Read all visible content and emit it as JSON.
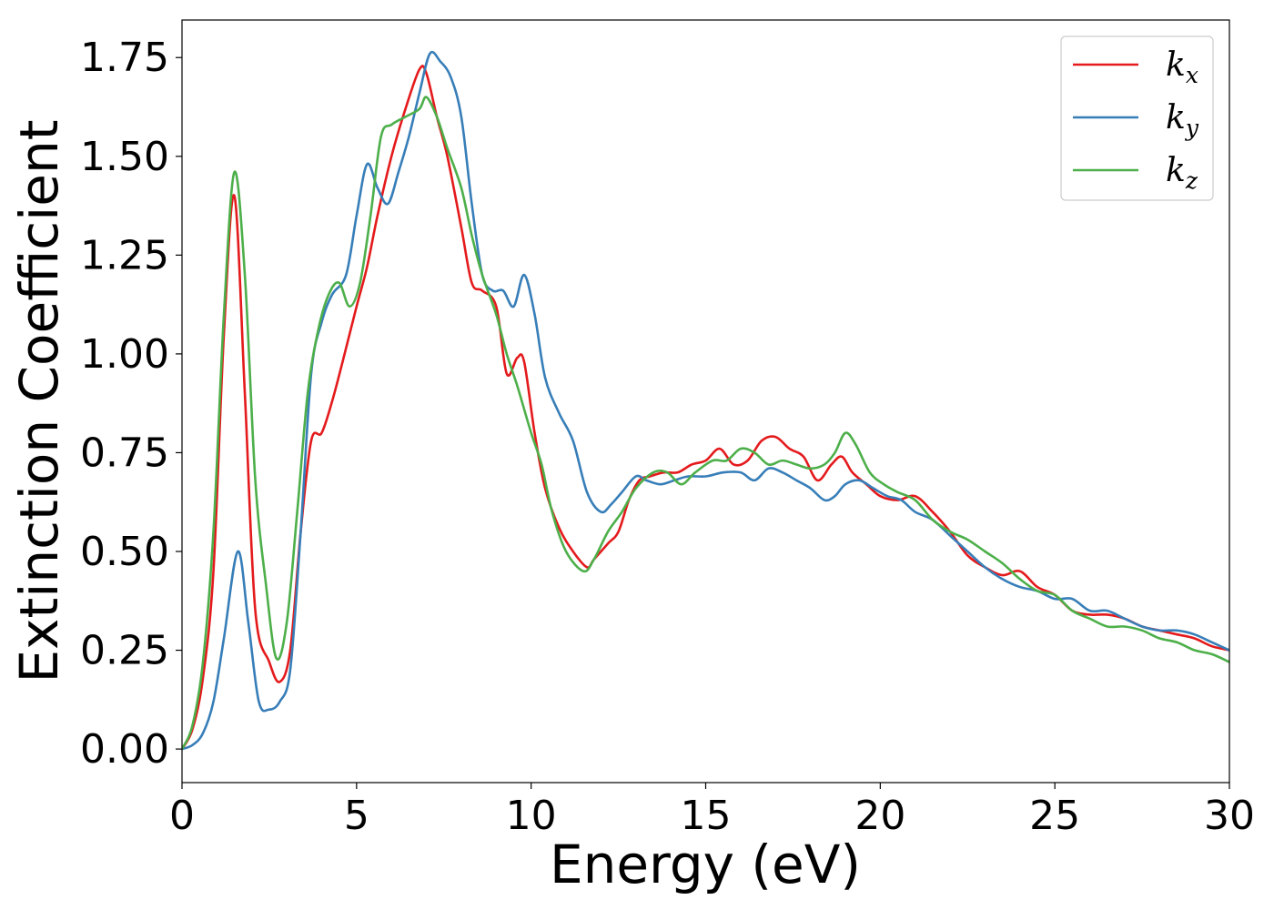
{
  "chart_data": {
    "type": "line",
    "xlabel": "Energy (eV)",
    "ylabel": "Extinction Coefficient",
    "xlim": [
      0,
      30
    ],
    "ylim": [
      -0.085,
      1.845
    ],
    "xticks": [
      0,
      5,
      10,
      15,
      20,
      25,
      30
    ],
    "xtick_labels": [
      "0",
      "5",
      "10",
      "15",
      "20",
      "25",
      "30"
    ],
    "yticks": [
      0,
      0.25,
      0.5,
      0.75,
      1.0,
      1.25,
      1.5,
      1.75
    ],
    "ytick_labels": [
      "0.00",
      "0.25",
      "0.50",
      "0.75",
      "1.00",
      "1.25",
      "1.50",
      "1.75"
    ],
    "grid": false,
    "legend_position": "top-right",
    "series": [
      {
        "name": "k_x",
        "label_main": "k",
        "label_sub": "x",
        "color": "#e41a1c",
        "x": [
          0,
          0.3,
          0.6,
          0.9,
          1.2,
          1.5,
          1.8,
          2.1,
          2.5,
          2.8,
          3.1,
          3.4,
          3.7,
          4.0,
          4.3,
          4.6,
          5.0,
          5.3,
          5.6,
          6.0,
          6.4,
          6.8,
          7.0,
          7.3,
          7.6,
          8.0,
          8.3,
          8.6,
          9.0,
          9.3,
          9.6,
          9.8,
          10.1,
          10.4,
          10.8,
          11.2,
          11.6,
          11.8,
          12.2,
          12.5,
          12.8,
          13.1,
          13.4,
          13.8,
          14.2,
          14.6,
          15.0,
          15.4,
          15.8,
          16.2,
          16.6,
          17.0,
          17.4,
          17.8,
          18.2,
          18.6,
          18.9,
          19.2,
          19.6,
          20.0,
          20.5,
          21.0,
          21.5,
          22.0,
          22.5,
          23.0,
          23.5,
          24.0,
          24.5,
          25.0,
          25.5,
          26.0,
          26.5,
          27.0,
          27.5,
          28.0,
          28.5,
          29.0,
          29.5,
          30.0
        ],
        "y": [
          0.0,
          0.05,
          0.18,
          0.45,
          1.05,
          1.4,
          0.9,
          0.35,
          0.22,
          0.17,
          0.25,
          0.55,
          0.78,
          0.8,
          0.88,
          0.98,
          1.12,
          1.22,
          1.35,
          1.5,
          1.62,
          1.72,
          1.71,
          1.6,
          1.5,
          1.32,
          1.18,
          1.16,
          1.12,
          0.95,
          0.99,
          0.98,
          0.8,
          0.66,
          0.56,
          0.5,
          0.46,
          0.48,
          0.52,
          0.55,
          0.63,
          0.68,
          0.69,
          0.7,
          0.7,
          0.72,
          0.73,
          0.76,
          0.72,
          0.73,
          0.78,
          0.79,
          0.76,
          0.74,
          0.68,
          0.72,
          0.74,
          0.7,
          0.67,
          0.64,
          0.63,
          0.64,
          0.6,
          0.55,
          0.49,
          0.46,
          0.44,
          0.45,
          0.41,
          0.39,
          0.35,
          0.34,
          0.34,
          0.33,
          0.31,
          0.3,
          0.29,
          0.28,
          0.26,
          0.25
        ]
      },
      {
        "name": "k_y",
        "label_main": "k",
        "label_sub": "y",
        "color": "#377eb8",
        "x": [
          0,
          0.3,
          0.6,
          0.9,
          1.2,
          1.6,
          1.9,
          2.2,
          2.5,
          2.8,
          3.1,
          3.4,
          3.7,
          4.0,
          4.3,
          4.7,
          5.0,
          5.3,
          5.6,
          5.9,
          6.2,
          6.5,
          6.8,
          7.1,
          7.4,
          7.7,
          8.0,
          8.3,
          8.6,
          8.9,
          9.2,
          9.5,
          9.8,
          10.1,
          10.4,
          10.8,
          11.2,
          11.6,
          12.0,
          12.3,
          12.6,
          13.0,
          13.3,
          13.7,
          14.1,
          14.5,
          15.0,
          15.5,
          16.0,
          16.4,
          16.8,
          17.2,
          17.6,
          18.0,
          18.4,
          18.7,
          19.0,
          19.4,
          19.8,
          20.2,
          20.6,
          21.0,
          21.5,
          22.0,
          22.5,
          23.0,
          23.5,
          24.0,
          24.5,
          25.0,
          25.5,
          26.0,
          26.5,
          27.0,
          27.5,
          28.0,
          28.5,
          29.0,
          29.5,
          30.0
        ],
        "y": [
          0.0,
          0.01,
          0.04,
          0.12,
          0.28,
          0.5,
          0.32,
          0.12,
          0.1,
          0.12,
          0.2,
          0.55,
          0.95,
          1.08,
          1.15,
          1.2,
          1.35,
          1.48,
          1.42,
          1.38,
          1.46,
          1.55,
          1.66,
          1.76,
          1.74,
          1.7,
          1.6,
          1.38,
          1.2,
          1.16,
          1.16,
          1.12,
          1.2,
          1.1,
          0.94,
          0.85,
          0.78,
          0.65,
          0.6,
          0.62,
          0.65,
          0.69,
          0.68,
          0.67,
          0.68,
          0.69,
          0.69,
          0.7,
          0.7,
          0.68,
          0.71,
          0.7,
          0.68,
          0.66,
          0.63,
          0.64,
          0.67,
          0.68,
          0.66,
          0.64,
          0.63,
          0.6,
          0.58,
          0.54,
          0.5,
          0.46,
          0.43,
          0.41,
          0.4,
          0.38,
          0.38,
          0.35,
          0.35,
          0.33,
          0.31,
          0.3,
          0.3,
          0.29,
          0.27,
          0.25
        ]
      },
      {
        "name": "k_z",
        "label_main": "k",
        "label_sub": "z",
        "color": "#4daf4a",
        "x": [
          0,
          0.3,
          0.6,
          0.9,
          1.2,
          1.5,
          1.8,
          2.1,
          2.4,
          2.7,
          3.0,
          3.3,
          3.6,
          3.9,
          4.2,
          4.5,
          4.8,
          5.1,
          5.4,
          5.7,
          6.0,
          6.4,
          6.8,
          7.0,
          7.3,
          7.6,
          8.0,
          8.3,
          8.6,
          9.0,
          9.3,
          9.6,
          10.0,
          10.3,
          10.6,
          11.0,
          11.5,
          11.8,
          12.2,
          12.6,
          13.0,
          13.5,
          13.9,
          14.3,
          14.7,
          15.2,
          15.6,
          16.0,
          16.4,
          16.8,
          17.2,
          17.6,
          18.0,
          18.4,
          18.7,
          19.0,
          19.3,
          19.7,
          20.1,
          20.5,
          21.0,
          21.5,
          22.0,
          22.5,
          23.0,
          23.5,
          24.0,
          24.5,
          25.0,
          25.5,
          26.0,
          26.5,
          27.0,
          27.5,
          28.0,
          28.5,
          29.0,
          29.5,
          30.0
        ],
        "y": [
          0.0,
          0.06,
          0.22,
          0.55,
          1.1,
          1.46,
          1.2,
          0.68,
          0.42,
          0.23,
          0.32,
          0.6,
          0.9,
          1.06,
          1.15,
          1.18,
          1.12,
          1.18,
          1.35,
          1.55,
          1.58,
          1.6,
          1.62,
          1.65,
          1.6,
          1.52,
          1.42,
          1.3,
          1.2,
          1.1,
          1.0,
          0.92,
          0.8,
          0.72,
          0.6,
          0.5,
          0.45,
          0.48,
          0.55,
          0.6,
          0.66,
          0.7,
          0.7,
          0.67,
          0.7,
          0.73,
          0.73,
          0.76,
          0.75,
          0.72,
          0.73,
          0.72,
          0.71,
          0.72,
          0.75,
          0.8,
          0.77,
          0.7,
          0.67,
          0.65,
          0.63,
          0.58,
          0.55,
          0.53,
          0.5,
          0.47,
          0.43,
          0.4,
          0.39,
          0.35,
          0.33,
          0.31,
          0.31,
          0.3,
          0.28,
          0.27,
          0.25,
          0.24,
          0.22
        ]
      }
    ]
  }
}
